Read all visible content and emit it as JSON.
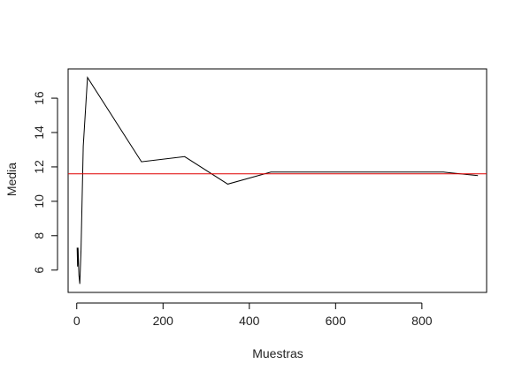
{
  "chart_data": {
    "type": "line",
    "title": "",
    "xlabel": "Muestras",
    "ylabel": "Media",
    "xlim": [
      -20,
      950
    ],
    "ylim": [
      4.7,
      17.7
    ],
    "x_ticks": [
      0,
      200,
      400,
      600,
      800
    ],
    "y_ticks": [
      6,
      8,
      10,
      12,
      14,
      16
    ],
    "series": [
      {
        "line_color": "#000000",
        "x": [
          1,
          2,
          3,
          5,
          7,
          10,
          15,
          25,
          150,
          250,
          350,
          450,
          550,
          650,
          750,
          850,
          930
        ],
        "y": [
          7.3,
          6.2,
          7.3,
          5.7,
          5.2,
          7.2,
          13.2,
          17.2,
          12.3,
          12.6,
          11.0,
          11.7,
          11.7,
          11.7,
          11.7,
          11.7,
          11.5
        ]
      }
    ],
    "reference_line": {
      "y": 11.6,
      "color": "#e00000"
    },
    "grid": false,
    "legend": "none"
  }
}
